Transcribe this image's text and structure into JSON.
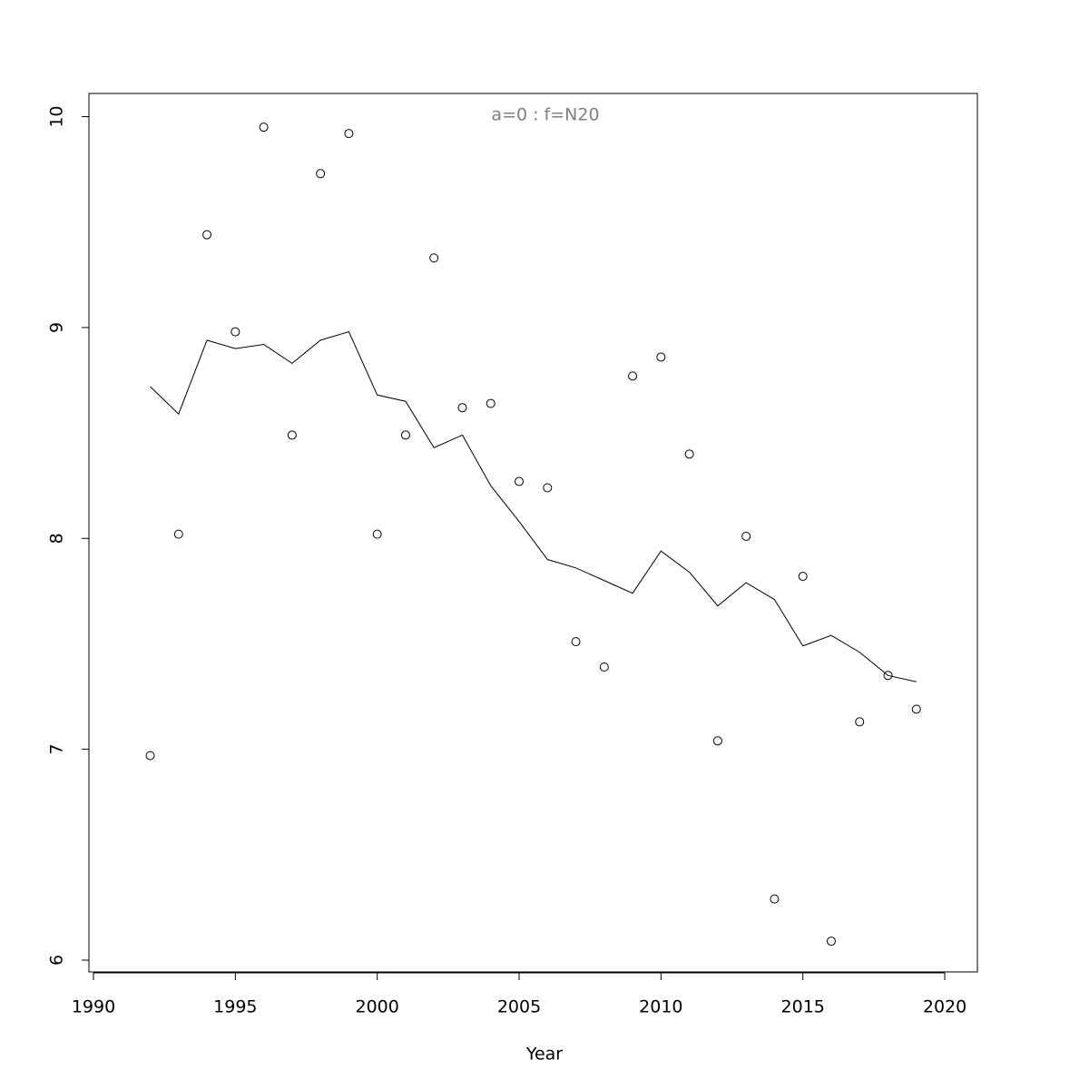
{
  "chart_data": {
    "type": "scatter",
    "title": "a=0  :  f=N20",
    "title_color": "#808080",
    "x_label": "Year",
    "x": [
      1992,
      1993,
      1994,
      1995,
      1996,
      1997,
      1998,
      1999,
      2000,
      2001,
      2002,
      2003,
      2004,
      2005,
      2006,
      2007,
      2008,
      2009,
      2010,
      2011,
      2012,
      2013,
      2014,
      2015,
      2016,
      2017,
      2018,
      2019
    ],
    "series": [
      {
        "type": "scatter",
        "color": "#000000",
        "values": [
          6.97,
          8.02,
          9.44,
          8.98,
          9.95,
          8.49,
          9.73,
          9.92,
          8.02,
          8.49,
          9.33,
          8.62,
          8.64,
          8.27,
          8.24,
          7.51,
          7.39,
          8.77,
          8.86,
          8.4,
          7.04,
          8.01,
          6.29,
          7.82,
          6.09,
          7.13,
          7.35,
          7.19
        ]
      },
      {
        "type": "line",
        "color": "#000000",
        "values": [
          8.72,
          8.59,
          8.94,
          8.9,
          8.92,
          8.83,
          8.94,
          8.98,
          8.68,
          8.65,
          8.43,
          8.49,
          8.25,
          8.08,
          7.9,
          7.86,
          7.8,
          7.74,
          7.94,
          7.84,
          7.68,
          7.79,
          7.71,
          7.49,
          7.54,
          7.46,
          7.35,
          7.32
        ]
      }
    ],
    "xlim": [
      1989.84,
      2021.15
    ],
    "xticks": [
      1990,
      1995,
      2000,
      2005,
      2010,
      2015,
      2020
    ],
    "ylim": [
      5.944,
      10.11
    ],
    "yticks": [
      6,
      7,
      8,
      9,
      10
    ],
    "grid": false
  }
}
